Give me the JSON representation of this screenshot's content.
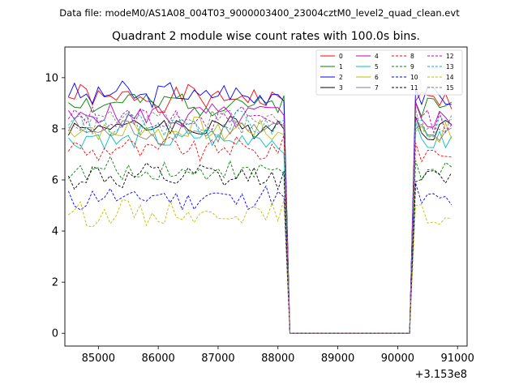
{
  "header": {
    "data_file": "Data file: modeM0/AS1A08_004T03_9000003400_23004cztM0_level2_quad_clean.evt"
  },
  "chart_data": {
    "type": "line",
    "title": "Quadrant 2 module wise count rates with 100.0s bins.",
    "xlabel": "",
    "ylabel": "",
    "x_offset_label": "+3.153e8",
    "xlim": [
      84440,
      91160
    ],
    "ylim": [
      -0.5,
      11.2
    ],
    "x_ticks": [
      85000,
      86000,
      87000,
      88000,
      89000,
      90000,
      91000
    ],
    "x_tick_labels": [
      "85000",
      "86000",
      "87000",
      "88000",
      "89000",
      "90000",
      "91000"
    ],
    "y_ticks": [
      0,
      2,
      4,
      6,
      8,
      10
    ],
    "y_tick_labels": [
      "0",
      "2",
      "4",
      "6",
      "8",
      "10"
    ],
    "grid": false,
    "legend_position": "top-right",
    "segments": [
      {
        "start": 84500,
        "end": 88100,
        "step": 100
      },
      {
        "start": 88200,
        "end": 90200,
        "step": 100
      },
      {
        "start": 90300,
        "end": 90900,
        "step": 100
      }
    ],
    "series": [
      {
        "name": "0",
        "color": "#ff0000",
        "style": "solid",
        "mean": 9.2
      },
      {
        "name": "1",
        "color": "#008000",
        "style": "solid",
        "mean": 9.0
      },
      {
        "name": "2",
        "color": "#0000ff",
        "style": "solid",
        "mean": 9.35
      },
      {
        "name": "3",
        "color": "#000000",
        "style": "solid",
        "mean": 8.1
      },
      {
        "name": "4",
        "color": "#bf00bf",
        "style": "solid",
        "mean": 8.5
      },
      {
        "name": "5",
        "color": "#00bfbf",
        "style": "solid",
        "mean": 7.6
      },
      {
        "name": "6",
        "color": "#bfbf00",
        "style": "solid",
        "mean": 7.95
      },
      {
        "name": "7",
        "color": "#808080",
        "style": "solid",
        "mean": 7.9
      },
      {
        "name": "8",
        "color": "#ff0000",
        "style": "dashed",
        "mean": 7.2
      },
      {
        "name": "9",
        "color": "#008000",
        "style": "dashed",
        "mean": 6.35
      },
      {
        "name": "10",
        "color": "#0000ff",
        "style": "dashed",
        "mean": 5.3
      },
      {
        "name": "11",
        "color": "#000000",
        "style": "dashed",
        "mean": 6.1
      },
      {
        "name": "12",
        "color": "#bf00bf",
        "style": "dashed",
        "mean": 8.4
      },
      {
        "name": "13",
        "color": "#00bfbf",
        "style": "dashed",
        "mean": 8.15
      },
      {
        "name": "14",
        "color": "#bfbf00",
        "style": "dashed",
        "mean": 4.7
      },
      {
        "name": "15",
        "color": "#808080",
        "style": "dashed",
        "mean": 8.3
      }
    ]
  }
}
